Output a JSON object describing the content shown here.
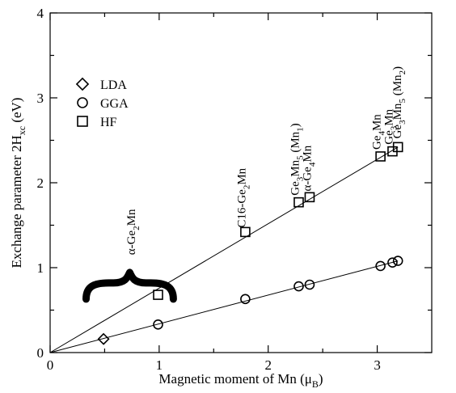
{
  "chart_data": {
    "type": "scatter",
    "xlabel": "Magnetic moment of Mn (μB)",
    "ylabel": "Exchange parameter 2Hxc (eV)",
    "xlim": [
      0,
      3.5
    ],
    "ylim": [
      0,
      4
    ],
    "x_ticks": [
      0,
      1,
      2,
      3
    ],
    "y_ticks": [
      0,
      1,
      2,
      3,
      4
    ],
    "grid": false,
    "legend_position": "upper-left",
    "series": [
      {
        "name": "LDA",
        "marker": "diamond",
        "points": [
          [
            0.49,
            0.16
          ]
        ]
      },
      {
        "name": "GGA",
        "marker": "circle",
        "points": [
          [
            0.99,
            0.33
          ],
          [
            1.79,
            0.63
          ],
          [
            2.28,
            0.78
          ],
          [
            2.38,
            0.8
          ],
          [
            3.03,
            1.02
          ],
          [
            3.14,
            1.06
          ],
          [
            3.19,
            1.08
          ]
        ]
      },
      {
        "name": "HF",
        "marker": "square",
        "points": [
          [
            0.99,
            0.68
          ],
          [
            1.79,
            1.42
          ],
          [
            2.28,
            1.77
          ],
          [
            2.38,
            1.83
          ],
          [
            3.03,
            2.31
          ],
          [
            3.14,
            2.37
          ],
          [
            3.19,
            2.42
          ]
        ]
      }
    ],
    "fit_lines": [
      {
        "from": [
          0,
          0
        ],
        "to": [
          3.19,
          2.42
        ]
      },
      {
        "from": [
          0,
          0
        ],
        "to": [
          3.19,
          1.08
        ]
      }
    ],
    "annotations": [
      {
        "pre": "α-Ge",
        "sub": "2",
        "post": "Mn",
        "x": 0.78,
        "y": 1.15
      },
      {
        "pre": "C16-Ge",
        "sub": "2",
        "post": "Mn",
        "x": 1.79,
        "y": 1.47
      },
      {
        "pre": "Ge",
        "sub": "3",
        "mid": "Mn",
        "sub2": "5",
        "post": " (Mn",
        "sub3": "1",
        "end": ")",
        "x": 2.28,
        "y": 1.85
      },
      {
        "pre": "α-Ge",
        "sub": "4",
        "post": "Mn",
        "x": 2.39,
        "y": 1.9
      },
      {
        "pre": "Ge",
        "sub": "4",
        "post": "Mn",
        "x": 3.03,
        "y": 2.39
      },
      {
        "pre": "Ge",
        "sub": "3",
        "post": "Mn",
        "x": 3.14,
        "y": 2.45
      },
      {
        "pre": "Ge",
        "sub": "3",
        "mid": "Mn",
        "sub2": "5",
        "post": " (Mn",
        "sub3": "2",
        "end": ")",
        "x": 3.22,
        "y": 2.52
      }
    ],
    "brace": {
      "x_from": 0.33,
      "x_to": 1.13,
      "y": 0.82
    }
  }
}
